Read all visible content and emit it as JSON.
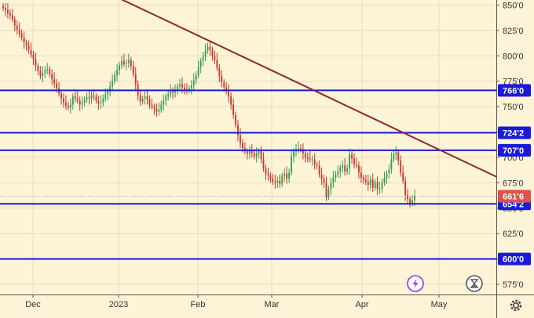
{
  "chart_data": {
    "type": "candlestick",
    "x_labels": [
      "Dec",
      "2023",
      "Feb",
      "Mar",
      "Apr",
      "May"
    ],
    "y_ticks": [
      {
        "value": 850,
        "label": "850'0"
      },
      {
        "value": 825,
        "label": "825'0"
      },
      {
        "value": 800,
        "label": "800'0"
      },
      {
        "value": 775,
        "label": "775'0"
      },
      {
        "value": 750,
        "label": "750'0"
      },
      {
        "value": 725,
        "label": "725'0"
      },
      {
        "value": 700,
        "label": "700'0"
      },
      {
        "value": 675,
        "label": "675'0"
      },
      {
        "value": 650,
        "label": "650'0"
      },
      {
        "value": 625,
        "label": "625'0"
      },
      {
        "value": 600,
        "label": "600'0"
      },
      {
        "value": 575,
        "label": "575'0"
      }
    ],
    "ylim": [
      565,
      855
    ],
    "grid": true,
    "horizontal_levels": [
      {
        "value": 766,
        "label": "766'0",
        "color": "#1a1adb"
      },
      {
        "value": 724.25,
        "label": "724'2",
        "color": "#1a1adb"
      },
      {
        "value": 707,
        "label": "707'0",
        "color": "#1a1adb"
      },
      {
        "value": 654.25,
        "label": "654'2",
        "color": "#1a1adb"
      },
      {
        "value": 600,
        "label": "600'0",
        "color": "#1a1adb"
      }
    ],
    "current_price": {
      "value": 661.75,
      "label": "661'6",
      "color": "#e05050"
    },
    "trendline": {
      "x": [
        0.2,
        1.0
      ],
      "y": [
        866,
        681
      ],
      "color": "#8b2a2a"
    },
    "candle_colors": {
      "up": "#2e9e54",
      "down": "#c8332b"
    },
    "candles_close": [
      847,
      845,
      842,
      840,
      836,
      830,
      826,
      822,
      818,
      813,
      810,
      806,
      801,
      797,
      790,
      785,
      780,
      783,
      786,
      787,
      782,
      777,
      773,
      768,
      763,
      758,
      754,
      751,
      749,
      752,
      760,
      758,
      756,
      752,
      754,
      757,
      759,
      758,
      761,
      760,
      756,
      753,
      754,
      758,
      762,
      765,
      770,
      775,
      781,
      786,
      791,
      795,
      792,
      793,
      796,
      790,
      782,
      772,
      761,
      755,
      758,
      760,
      757,
      752,
      750,
      748,
      745,
      747,
      752,
      756,
      760,
      762,
      765,
      764,
      766,
      770,
      772,
      769,
      767,
      766,
      768,
      771,
      776,
      781,
      789,
      795,
      799,
      805,
      809,
      806,
      800,
      796,
      788,
      780,
      774,
      769,
      765,
      760,
      752,
      742,
      732,
      722,
      714,
      709,
      706,
      704,
      706,
      704,
      701,
      704,
      706,
      698,
      689,
      684,
      682,
      679,
      676,
      675,
      677,
      674,
      682,
      684,
      679,
      685,
      701,
      706,
      708,
      709,
      708,
      704,
      700,
      699,
      698,
      698,
      693,
      692,
      683,
      679,
      675,
      661,
      669,
      675,
      680,
      683,
      686,
      690,
      692,
      686,
      689,
      703,
      699,
      693,
      692,
      685,
      680,
      678,
      676,
      673,
      678,
      670,
      676,
      669,
      669,
      675,
      680,
      684,
      688,
      698,
      703,
      705,
      697,
      685,
      677,
      663,
      659,
      655,
      658,
      661.75
    ]
  }
}
